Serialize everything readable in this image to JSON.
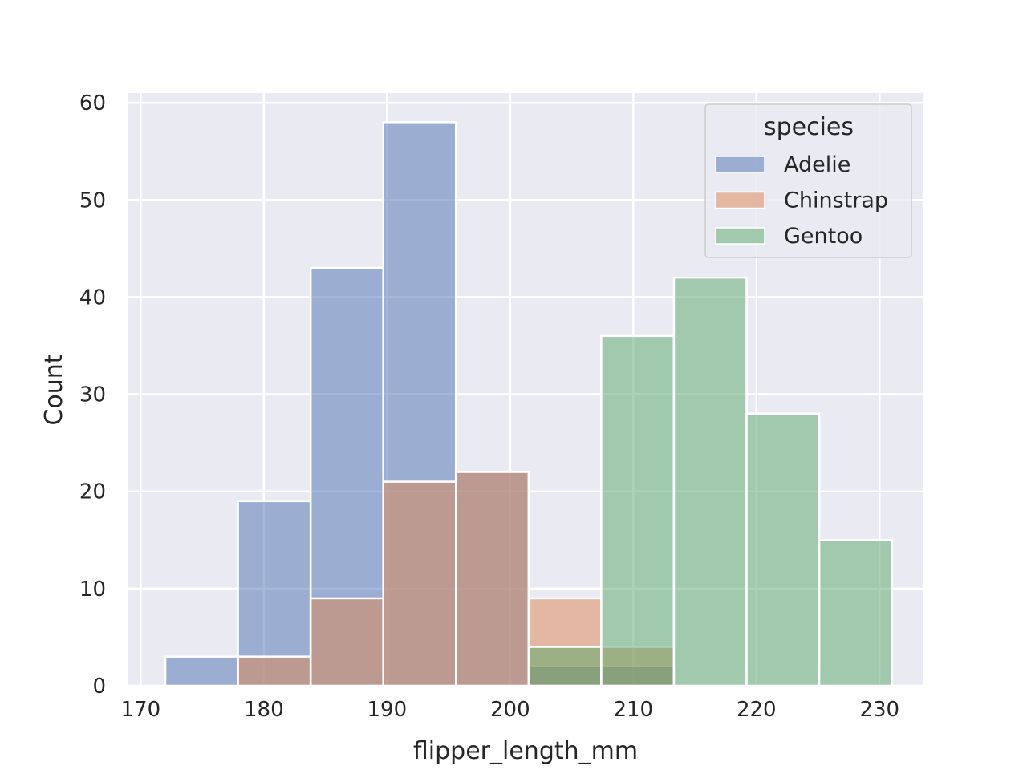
{
  "chart_data": {
    "type": "bar",
    "xlabel": "flipper_length_mm",
    "ylabel": "Count",
    "xlim": [
      169,
      233.5
    ],
    "ylim": [
      0,
      61
    ],
    "xticks": [
      170,
      180,
      190,
      200,
      210,
      220,
      230
    ],
    "yticks": [
      0,
      10,
      20,
      30,
      40,
      50,
      60
    ],
    "grid": true,
    "background": "#eaeaf2",
    "bin_edges": [
      172,
      177.9,
      183.8,
      189.7,
      195.6,
      201.5,
      207.4,
      213.3,
      219.2,
      225.1,
      231
    ],
    "legend": {
      "title": "species",
      "position": "upper-right"
    },
    "series": [
      {
        "name": "Adelie",
        "color": "#4c72b0",
        "values": [
          3,
          19,
          43,
          58,
          22,
          2,
          2,
          0,
          0,
          0
        ]
      },
      {
        "name": "Chinstrap",
        "color": "#dd8452",
        "values": [
          0,
          3,
          9,
          21,
          22,
          9,
          4,
          0,
          0,
          0
        ]
      },
      {
        "name": "Gentoo",
        "color": "#55a868",
        "values": [
          0,
          0,
          0,
          0,
          0,
          4,
          36,
          42,
          28,
          15
        ]
      }
    ]
  }
}
